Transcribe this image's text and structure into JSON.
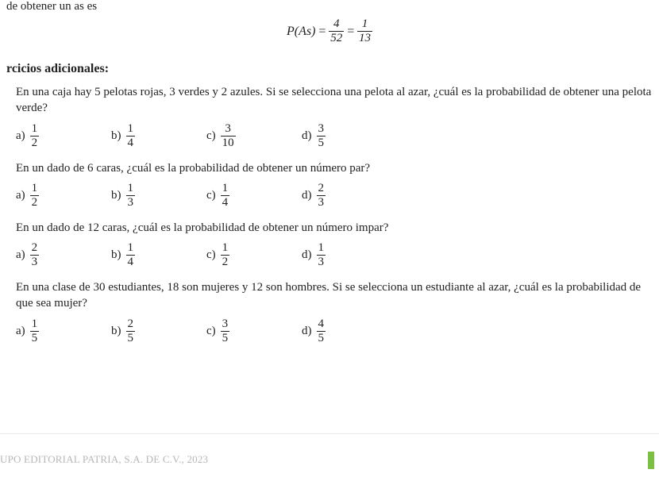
{
  "partial_top": "de obtener un as es",
  "equation": {
    "lhs": "P(As)",
    "eq": "=",
    "frac1_num": "4",
    "frac1_den": "52",
    "eq2": "=",
    "frac2_num": "1",
    "frac2_den": "13"
  },
  "section_title": "rcicios adicionales:",
  "questions": [
    {
      "text": "En una caja hay 5 pelotas rojas, 3 verdes y 2 azules. Si se selecciona una pelota al azar, ¿cuál es la probabilidad de obtener una pelota verde?",
      "options": [
        {
          "letter": "a)",
          "num": "1",
          "den": "2"
        },
        {
          "letter": "b)",
          "num": "1",
          "den": "4"
        },
        {
          "letter": "c)",
          "num": "3",
          "den": "10"
        },
        {
          "letter": "d)",
          "num": "3",
          "den": "5"
        }
      ]
    },
    {
      "text": "En un dado de 6 caras, ¿cuál es la probabilidad de obtener un número par?",
      "options": [
        {
          "letter": "a)",
          "num": "1",
          "den": "2"
        },
        {
          "letter": "b)",
          "num": "1",
          "den": "3"
        },
        {
          "letter": "c)",
          "num": "1",
          "den": "4"
        },
        {
          "letter": "d)",
          "num": "2",
          "den": "3"
        }
      ]
    },
    {
      "text": "En un dado de 12 caras, ¿cuál es la probabilidad de obtener un número impar?",
      "options": [
        {
          "letter": "a)",
          "num": "2",
          "den": "3"
        },
        {
          "letter": "b)",
          "num": "1",
          "den": "4"
        },
        {
          "letter": "c)",
          "num": "1",
          "den": "2"
        },
        {
          "letter": "d)",
          "num": "1",
          "den": "3"
        }
      ]
    },
    {
      "text": "En una clase de 30 estudiantes, 18 son mujeres y 12 son hombres. Si se selecciona un estudiante al azar, ¿cuál es la probabilidad de que sea mujer?",
      "options": [
        {
          "letter": "a)",
          "num": "1",
          "den": "5"
        },
        {
          "letter": "b)",
          "num": "2",
          "den": "5"
        },
        {
          "letter": "c)",
          "num": "3",
          "den": "5"
        },
        {
          "letter": "d)",
          "num": "4",
          "den": "5"
        }
      ]
    }
  ],
  "footer": "UPO EDITORIAL PATRIA, S.A. DE C.V., 2023",
  "colors": {
    "text": "#222222",
    "footer_text": "#b7b7b7",
    "hr": "#e8e8e8",
    "green": "#7bc042",
    "bg": "#ffffff"
  },
  "typography": {
    "body_family": "Georgia, Times New Roman, serif",
    "body_size_pt": 11,
    "title_weight": "bold"
  }
}
